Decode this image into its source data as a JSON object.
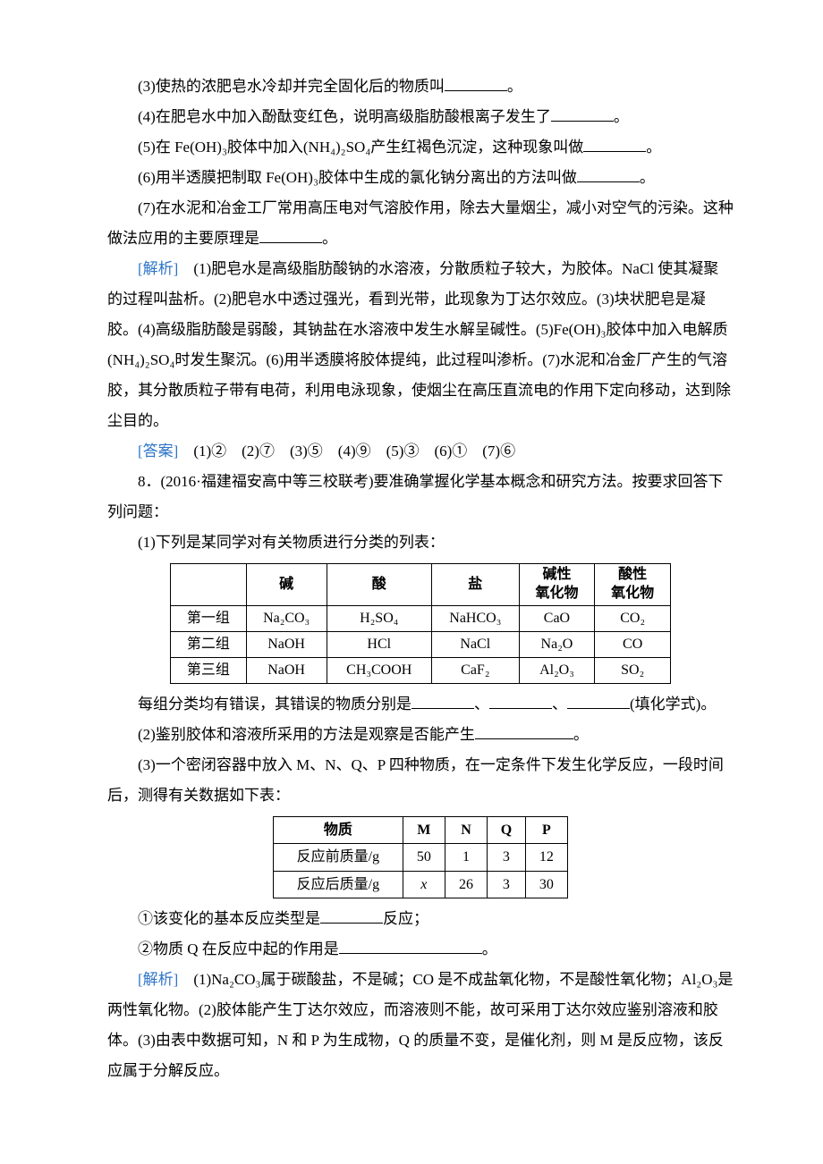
{
  "q3": "(3)使热的浓肥皂水冷却并完全固化后的物质叫",
  "q3_tail": "。",
  "q4": "(4)在肥皂水中加入酚酞变红色，说明高级脂肪酸根离子发生了",
  "q4_tail": "。",
  "q5": "(5)在 Fe(OH)₃胶体中加入(NH₄)₂SO₄产生红褐色沉淀，这种现象叫做",
  "q5_tail": "。",
  "q6": "(6)用半透膜把制取 Fe(OH)₃胶体中生成的氯化钠分离出的方法叫做",
  "q6_tail": "。",
  "q7": "(7)在水泥和冶金工厂常用高压电对气溶胶作用，除去大量烟尘，减小对空气的污染。这种做法应用的主要原理是",
  "q7_tail": "。",
  "explain_label": "[解析]　",
  "explain_text": "(1)肥皂水是高级脂肪酸钠的水溶液，分散质粒子较大，为胶体。NaCl 使其凝聚的过程叫盐析。(2)肥皂水中透过强光，看到光带，此现象为丁达尔效应。(3)块状肥皂是凝胶。(4)高级脂肪酸是弱酸，其钠盐在水溶液中发生水解呈碱性。(5)Fe(OH)₃胶体中加入电解质(NH₄)₂SO₄时发生聚沉。(6)用半透膜将胶体提纯，此过程叫渗析。(7)水泥和冶金厂产生的气溶胶，其分散质粒子带有电荷，利用电泳现象，使烟尘在高压直流电的作用下定向移动，达到除尘目的。",
  "answer_label": "[答案]　",
  "answer_text": "(1)②　(2)⑦　(3)⑤　(4)⑨　(5)③　(6)①　(7)⑥",
  "q8_head": "8．(2016·福建福安高中等三校联考)要准确掌握化学基本概念和研究方法。按要求回答下列问题：",
  "q8_1": "(1)下列是某同学对有关物质进行分类的列表：",
  "t1": {
    "header": [
      "",
      "碱",
      "酸",
      "盐",
      "碱性\n氧化物",
      "酸性\n氧化物"
    ],
    "rows": [
      [
        "第一组",
        "Na₂CO₃",
        "H₂SO₄",
        "NaHCO₃",
        "CaO",
        "CO₂"
      ],
      [
        "第二组",
        "NaOH",
        "HCl",
        "NaCl",
        "Na₂O",
        "CO"
      ],
      [
        "第三组",
        "NaOH",
        "CH₃COOH",
        "CaF₂",
        "Al₂O₃",
        "SO₂"
      ]
    ]
  },
  "q8_1_tail_a": "每组分类均有错误，其错误的物质分别是",
  "q8_1_tail_b": "、",
  "q8_1_tail_c": "、",
  "q8_1_tail_d": "(填化学式)。",
  "q8_2": "(2)鉴别胶体和溶液所采用的方法是观察是否能产生",
  "q8_2_tail": "。",
  "q8_3": "(3)一个密闭容器中放入 M、N、Q、P 四种物质，在一定条件下发生化学反应，一段时间后，测得有关数据如下表：",
  "t2": {
    "header": [
      "物质",
      "M",
      "N",
      "Q",
      "P"
    ],
    "rows": [
      [
        "反应前质量/g",
        "50",
        "1",
        "3",
        "12"
      ],
      [
        "反应后质量/g",
        "x",
        "26",
        "3",
        "30"
      ]
    ],
    "italic_cell": "x"
  },
  "q8_3_1": "①该变化的基本反应类型是",
  "q8_3_1_tail": "反应；",
  "q8_3_2": "②物质 Q 在反应中起的作用是",
  "q8_3_2_tail": "。",
  "explain2_text": "(1)Na₂CO₃属于碳酸盐，不是碱；CO 是不成盐氧化物，不是酸性氧化物；Al₂O₃是两性氧化物。(2)胶体能产生丁达尔效应，而溶液则不能，故可采用丁达尔效应鉴别溶液和胶体。(3)由表中数据可知，N 和 P 为生成物，Q 的质量不变，是催化剂，则 M 是反应物，该反应属于分解反应。",
  "colors": {
    "text": "#000000",
    "link": "#2e74c7",
    "background": "#ffffff",
    "border": "#000000"
  }
}
